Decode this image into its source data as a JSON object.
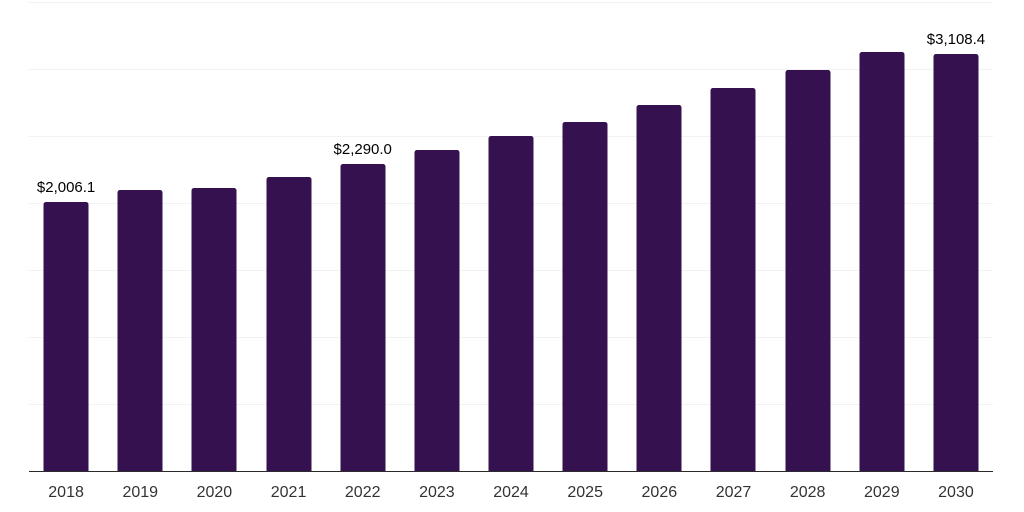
{
  "chart_data": {
    "type": "bar",
    "title": "",
    "xlabel": "",
    "ylabel": "",
    "categories": [
      "2018",
      "2019",
      "2020",
      "2021",
      "2022",
      "2023",
      "2024",
      "2025",
      "2026",
      "2027",
      "2028",
      "2029",
      "2030"
    ],
    "values": [
      2006.1,
      2100,
      2112,
      2195,
      2290.0,
      2395,
      2500,
      2608,
      2732,
      2861,
      2993,
      3125,
      3108.4
    ],
    "data_labels": [
      {
        "index": 0,
        "text": "$2,006.1"
      },
      {
        "index": 4,
        "text": "$2,290.0"
      },
      {
        "index": 12,
        "text": "$3,108.4"
      }
    ],
    "ylim": [
      0,
      3500
    ],
    "gridline_step": 500,
    "grid": true,
    "legend": false,
    "colors": {
      "bar": "#36114F",
      "gridline": "#F2F2F2",
      "axis_line": "#2B2B2B",
      "data_label": "#000000",
      "tick_label": "#333333"
    }
  }
}
